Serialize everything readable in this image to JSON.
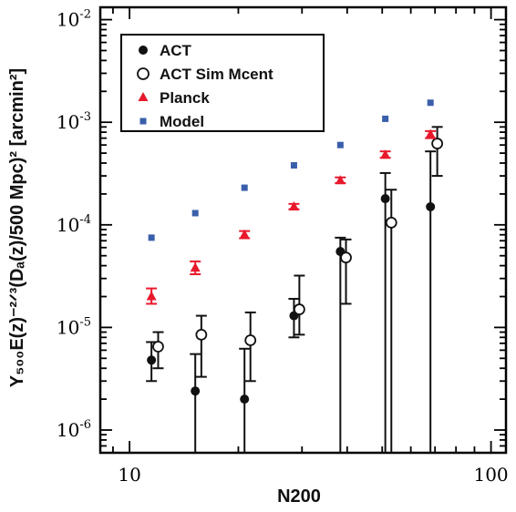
{
  "chart_data": {
    "type": "scatter",
    "xlabel": "N200",
    "ylabel": "Y₅₀₀E(z)⁻²ᐟ³(Dₐ(z)/500 Mpc)² [arcmin²]",
    "xscale": "log",
    "yscale": "log",
    "xlim": [
      8.3,
      110
    ],
    "ylim": [
      6e-07,
      0.0132
    ],
    "x_ticks": [
      {
        "value": 10,
        "label": "10"
      },
      {
        "value": 100,
        "label": "100"
      }
    ],
    "y_ticks": [
      {
        "value": 1e-06,
        "base": "10",
        "exp": "-6"
      },
      {
        "value": 1e-05,
        "base": "10",
        "exp": "-5"
      },
      {
        "value": 0.0001,
        "base": "10",
        "exp": "-4"
      },
      {
        "value": 0.001,
        "base": "10",
        "exp": "-3"
      },
      {
        "value": 0.01,
        "base": "10",
        "exp": "-2"
      }
    ],
    "legend_position": "top-left",
    "series": [
      {
        "name": "ACT",
        "marker": "filled-circle",
        "color": "#111111",
        "points": [
          {
            "x": 11.5,
            "y": 4.8e-06,
            "ylo": 3e-06,
            "yhi": 7.2e-06
          },
          {
            "x": 15.2,
            "y": 2.4e-06,
            "ylo": 5e-07,
            "yhi": 5.5e-06
          },
          {
            "x": 20.8,
            "y": 2e-06,
            "ylo": 5e-07,
            "yhi": 6.2e-06
          },
          {
            "x": 28.5,
            "y": 1.3e-05,
            "ylo": 8e-06,
            "yhi": 1.9e-05
          },
          {
            "x": 38.3,
            "y": 5.5e-05,
            "ylo": 5e-07,
            "yhi": 7.5e-05
          },
          {
            "x": 51.0,
            "y": 0.00018,
            "ylo": 5e-07,
            "yhi": 0.00032
          },
          {
            "x": 68.0,
            "y": 0.00015,
            "ylo": 5e-07,
            "yhi": 0.00052
          }
        ]
      },
      {
        "name": "ACT Sim Mcent",
        "marker": "open-circle",
        "color": "#111111",
        "points": [
          {
            "x": 12.0,
            "y": 6.5e-06,
            "ylo": 4e-06,
            "yhi": 9e-06
          },
          {
            "x": 15.8,
            "y": 8.5e-06,
            "ylo": 3.3e-06,
            "yhi": 1.3e-05
          },
          {
            "x": 21.6,
            "y": 7.5e-06,
            "ylo": 3e-06,
            "yhi": 1.4e-05
          },
          {
            "x": 29.5,
            "y": 1.5e-05,
            "ylo": 8.5e-06,
            "yhi": 3.2e-05
          },
          {
            "x": 39.7,
            "y": 4.8e-05,
            "ylo": 1.7e-05,
            "yhi": 7.2e-05
          },
          {
            "x": 53.0,
            "y": 0.000105,
            "ylo": 5e-07,
            "yhi": 0.00022
          },
          {
            "x": 71.0,
            "y": 0.00062,
            "ylo": 0.0003,
            "yhi": 0.0009
          }
        ]
      },
      {
        "name": "Planck",
        "marker": "triangle",
        "color": "#e8192c",
        "points": [
          {
            "x": 11.5,
            "y": 2e-05,
            "ylo": 1.7e-05,
            "yhi": 2.4e-05
          },
          {
            "x": 15.2,
            "y": 3.8e-05,
            "ylo": 3.3e-05,
            "yhi": 4.4e-05
          },
          {
            "x": 20.8,
            "y": 8e-05,
            "ylo": 7.4e-05,
            "yhi": 8.7e-05
          },
          {
            "x": 28.5,
            "y": 0.00015,
            "ylo": 0.000142,
            "yhi": 0.00016
          },
          {
            "x": 38.3,
            "y": 0.00027,
            "ylo": 0.000255,
            "yhi": 0.00029
          },
          {
            "x": 51.0,
            "y": 0.00048,
            "ylo": 0.00045,
            "yhi": 0.00052
          },
          {
            "x": 68.0,
            "y": 0.00076,
            "ylo": 0.0007,
            "yhi": 0.00082
          }
        ]
      },
      {
        "name": "Model",
        "marker": "square",
        "color": "#3a5faa",
        "points": [
          {
            "x": 11.5,
            "y": 7.5e-05
          },
          {
            "x": 15.2,
            "y": 0.00013
          },
          {
            "x": 20.8,
            "y": 0.00023
          },
          {
            "x": 28.5,
            "y": 0.00038
          },
          {
            "x": 38.3,
            "y": 0.0006
          },
          {
            "x": 51.0,
            "y": 0.00108
          },
          {
            "x": 68.0,
            "y": 0.00155
          }
        ]
      }
    ]
  }
}
